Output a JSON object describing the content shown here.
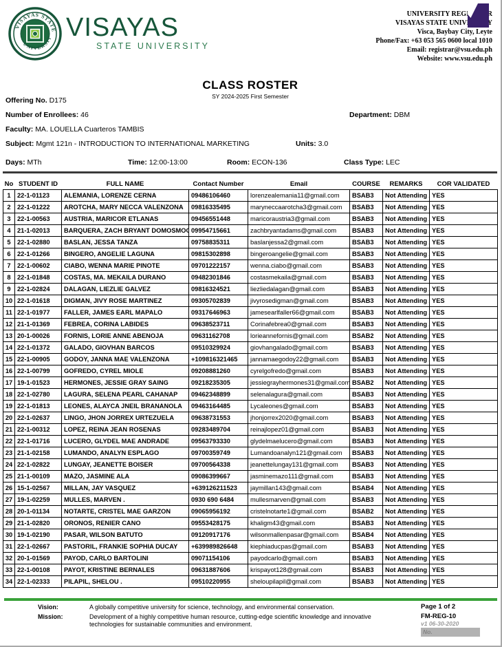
{
  "header": {
    "wordmark_main": "VISAYAS",
    "wordmark_sub": "STATE UNIVERSITY",
    "contact": {
      "office": "UNIVERSITY REGISTRAR",
      "university": "VISAYAS STATE UNIVERSITY",
      "address": "Visca, Baybay City, Leyte",
      "phone": "Phone/Fax: +63 053 565 0600 local 1010",
      "email": "Email: registrar@vsu.edu.ph",
      "website": "Website: www.vsu.edu.ph"
    }
  },
  "title": {
    "main": "CLASS ROSTER",
    "subtitle": "SY 2024-2025 First Semester"
  },
  "info": {
    "offering_label": "Offering No.",
    "offering_value": "D175",
    "enrollees_label": "Number of Enrollees:",
    "enrollees_value": "46",
    "department_label": "Department:",
    "department_value": "DBM",
    "faculty_label": "Faculty:",
    "faculty_value": "MA. LOUELLA Cuarteros TAMBIS",
    "subject_label": "Subject:",
    "subject_value": "Mgmt 121n - INTRODUCTION TO INTERNATIONAL MARKETING",
    "units_label": "Units:",
    "units_value": "3.0",
    "days_label": "Days:",
    "days_value": "MTh",
    "time_label": "Time:",
    "time_value": "12:00-13:00",
    "room_label": "Room:",
    "room_value": "ECON-136",
    "class_type_label": "Class Type:",
    "class_type_value": "LEC"
  },
  "table": {
    "headers": [
      "No",
      "STUDENT ID",
      "FULL NAME",
      "Contact Number",
      "Email",
      "COURSE",
      "REMARKS",
      "COR VALIDATED"
    ],
    "rows": [
      [
        "1",
        "22-1-01123",
        "ALEMANIA, LORENZE CERNA",
        "09486106460",
        "lorenzealemania11@gmail.com",
        "BSAB3",
        "Not Attending /",
        "YES"
      ],
      [
        "2",
        "22-1-01222",
        "AROTCHA, MARY NECCA VALENZONA",
        "09816335495",
        "maryneccaarotcha3@gmail.com",
        "BSAB3",
        "Not Attending /",
        "YES"
      ],
      [
        "3",
        "22-1-00563",
        "AUSTRIA, MARICOR ETLANAS",
        "09456551448",
        "maricoraustria3@gmail.com",
        "BSAB3",
        "Not Attending /",
        "YES"
      ],
      [
        "4",
        "21-1-02013",
        "BARQUERA, ZACH BRYANT DOMOSMOG",
        "09954715661",
        "zachbryantadams@gmail.com",
        "BSAB3",
        "Not Attending /",
        "YES"
      ],
      [
        "5",
        "22-1-02880",
        "BASLAN, JESSA TANZA",
        "09758835311",
        "baslanjessa2@gmail.com",
        "BSAB3",
        "Not Attending /",
        "YES"
      ],
      [
        "6",
        "22-1-01266",
        "BINGERO, ANGELIE LAGUNA",
        "09815302898",
        "bingeroangelie@gmail.com",
        "BSAB3",
        "Not Attending /",
        "YES"
      ],
      [
        "7",
        "22-1-00602",
        "CIABO, WENNA MARIE PINOTE",
        "09701222157",
        "wenna.ciabo@gmail.com",
        "BSAB3",
        "Not Attending /",
        "YES"
      ],
      [
        "8",
        "22-1-01848",
        "COSTAS, MA. MEKAILA DURANO",
        "09482301846",
        "costasmekaila@gmail.com",
        "BSAB3",
        "Not Attending /",
        "YES"
      ],
      [
        "9",
        "22-1-02824",
        "DALAGAN, LIEZLIE GALVEZ",
        "09816324521",
        "liezliedalagan@gmail.com",
        "BSAB3",
        "Not Attending /",
        "YES"
      ],
      [
        "10",
        "22-1-01618",
        "DIGMAN, JIVY ROSE MARTINEZ",
        "09305702839",
        "jivyrosedigman@gmail.com",
        "BSAB3",
        "Not Attending /",
        "YES"
      ],
      [
        "11",
        "22-1-01977",
        "FALLER, JAMES EARL MAPALO",
        "09317646963",
        "jamesearlfaller66@gmail.com",
        "BSAB3",
        "Not Attending /",
        "YES"
      ],
      [
        "12",
        "21-1-01369",
        "FEBREA, CORINA LABIDES",
        "09638523711",
        "Corinafebrea0@gmail.com",
        "BSAB3",
        "Not Attending /",
        "YES"
      ],
      [
        "13",
        "20-1-00026",
        "FORNIS, LORIE ANNE ABENOJA",
        "09631162708",
        "lorieannefornis@gmail.com",
        "BSAB2",
        "Not Attending /",
        "YES"
      ],
      [
        "14",
        "22-1-01372",
        "GALADO, GIOVHAN BARCOS",
        "09510329924",
        "giovhangalado@gmail.com",
        "BSAB3",
        "Not Attending /",
        "YES"
      ],
      [
        "15",
        "22-1-00905",
        "GODOY, JANNA MAE VALENZONA",
        "+109816321465",
        "jannamaegodoy22@gmail.com",
        "BSAB3",
        "Not Attending /",
        "YES"
      ],
      [
        "16",
        "22-1-00799",
        "GOFREDO, CYREL MIOLE",
        "09208881260",
        "cyrelgofredo@gmail.com",
        "BSAB3",
        "Not Attending /",
        "YES"
      ],
      [
        "17",
        "19-1-01523",
        "HERMONES, JESSIE GRAY SAING",
        "09218235305",
        "jessiegrayhermones31@gmail.com",
        "BSAB2",
        "Not Attending /",
        "YES"
      ],
      [
        "18",
        "22-1-02780",
        "LAGURA, SELENA PEARL CAHANAP",
        "09462348899",
        "selenalagura@gmail.com",
        "BSAB3",
        "Not Attending /",
        "YES"
      ],
      [
        "19",
        "22-1-01813",
        "LEONES, ALAYCA JNEIL BRANANOLA",
        "09463164485",
        "Lycaleones@gmail.com",
        "BSAB3",
        "Not Attending /",
        "YES"
      ],
      [
        "20",
        "22-1-02637",
        "LINGO, JHON JORREX URTEZUELA",
        "09638731553",
        "jhonjorrex2020@gmail.com",
        "BSAB3",
        "Not Attending /",
        "YES"
      ],
      [
        "21",
        "22-1-00312",
        "LOPEZ, REINA JEAN ROSENAS",
        "09283489704",
        "reinajlopez01@gmail.com",
        "BSAB3",
        "Not Attending /",
        "YES"
      ],
      [
        "22",
        "22-1-01716",
        "LUCERO, GLYDEL MAE ANDRADE",
        "09563793330",
        "glydelmaelucero@gmail.com",
        "BSAB3",
        "Not Attending /",
        "YES"
      ],
      [
        "23",
        "21-1-02158",
        "LUMANDO, ANALYN ESPLAGO",
        "09700359749",
        "Lumandoanalyn121@gmail.com",
        "BSAB3",
        "Not Attending /",
        "YES"
      ],
      [
        "24",
        "22-1-02822",
        "LUNGAY, JEANETTE BOISER",
        "09700564338",
        "jeanettelungay131@gmail.com",
        "BSAB3",
        "Not Attending /",
        "YES"
      ],
      [
        "25",
        "21-1-00109",
        "MAZO, JASMINE ALA",
        "09086399667",
        "jasminemazo111@gmail.com",
        "BSAB3",
        "Not Attending /",
        "YES"
      ],
      [
        "26",
        "15-1-02567",
        "MILLAN, JAY VASQUEZ",
        "+639126211523",
        "jaymillan143@gmail.com",
        "BSAB4",
        "Not Attending /",
        "YES"
      ],
      [
        "27",
        "19-1-02259",
        "MULLES, MARVEN .",
        "0930 690 6484",
        "mullesmarven@gmail.com",
        "BSAB3",
        "Not Attending /",
        "YES"
      ],
      [
        "28",
        "20-1-01134",
        "NOTARTE, CRISTEL MAE GARZON",
        "09065956192",
        "cristelnotarte1@gmail.com",
        "BSAB2",
        "Not Attending /",
        "YES"
      ],
      [
        "29",
        "21-1-02820",
        "ORONOS, RENIER CANO",
        "09553428175",
        "khaligm43@gmail.com",
        "BSAB3",
        "Not Attending /",
        "YES"
      ],
      [
        "30",
        "19-1-02190",
        "PASAR, WILSON BATUTO",
        "09120917176",
        "wilsonmallenpasar@gmail.com",
        "BSAB4",
        "Not Attending /",
        "YES"
      ],
      [
        "31",
        "22-1-02667",
        "PASTORIL, FRANKIE SOPHIA DUCAY",
        "+639989826648",
        "kiephiaducpas@gmail.com",
        "BSAB3",
        "Not Attending /",
        "YES"
      ],
      [
        "32",
        "20-1-01569",
        "PAYOD, CARLO BARTOLINI",
        "09071154106",
        "payodcarlo@gmail.com",
        "BSAB3",
        "Not Attending /",
        "YES"
      ],
      [
        "33",
        "22-1-00108",
        "PAYOT, KRISTINE BERNALES",
        "09631887606",
        "krispayot128@gmail.com",
        "BSAB3",
        "Not Attending /",
        "YES"
      ],
      [
        "34",
        "22-1-02333",
        "PILAPIL, SHELOU .",
        "09510220955",
        "sheloupilapil@gmail.com",
        "BSAB3",
        "Not Attending /",
        "YES"
      ]
    ]
  },
  "footer": {
    "vision_label": "Vision:",
    "vision_text": "A globally competitive university for science, technology, and environmental conservation.",
    "mission_label": "Mission:",
    "mission_text": "Development of a highly competitive human resource, cutting-edge scientific knowledge and innovative technologies for sustainable communities and environment.",
    "page": "Page 1 of 2",
    "form_code": "FM-REG-10",
    "version": "v1 06-30-2020",
    "no_label": "No."
  },
  "colors": {
    "brand_green_dark": "#17563a",
    "brand_green_light": "#2c7a4e",
    "footer_line_green": "#3aa23a",
    "overlay_purple": "#39216b",
    "no_box_gray": "#b2b2b2"
  }
}
